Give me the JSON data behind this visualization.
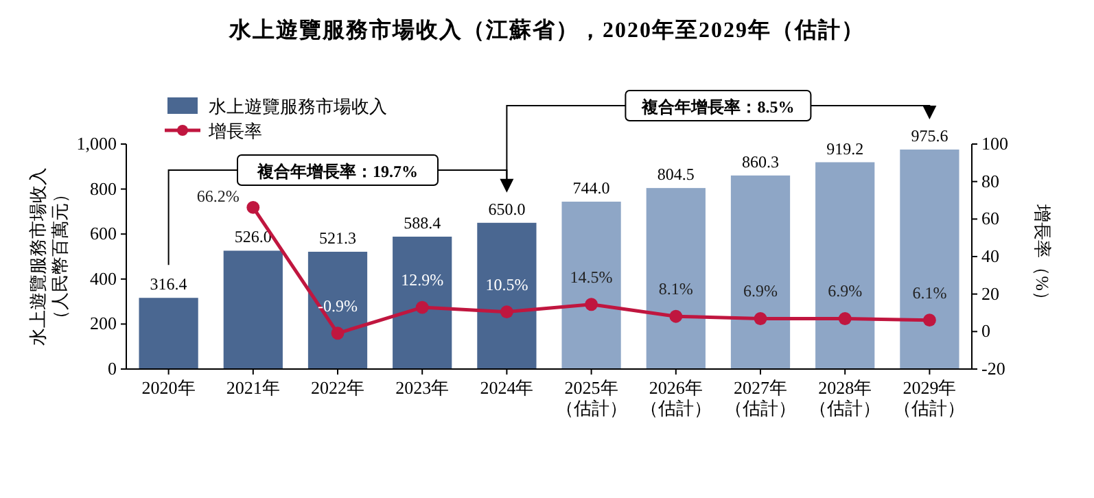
{
  "chart_data": {
    "type": "bar",
    "title": "水上遊覽服務市場收入（江蘇省），2020年至2029年（估計）",
    "categories": [
      "2020年",
      "2021年",
      "2022年",
      "2023年",
      "2024年",
      "2025年（估計）",
      "2026年（估計）",
      "2027年（估計）",
      "2028年（估計）",
      "2029年（估計）"
    ],
    "series": [
      {
        "name": "水上遊覽服務市場收入",
        "color": "#4a6791",
        "colors": [
          "#4a6791",
          "#4a6791",
          "#4a6791",
          "#4a6791",
          "#4a6791",
          "#8ea6c6",
          "#8ea6c6",
          "#8ea6c6",
          "#8ea6c6",
          "#8ea6c6"
        ],
        "values": [
          316.4,
          526.0,
          521.3,
          588.4,
          650.0,
          744.0,
          804.5,
          860.3,
          919.2,
          975.6
        ],
        "value_labels": [
          "316.4",
          "526.0",
          "521.3",
          "588.4",
          "650.0",
          "744.0",
          "804.5",
          "860.3",
          "919.2",
          "975.6"
        ]
      },
      {
        "name": "增長率",
        "type": "line",
        "axis": "y2",
        "color": "#c0163f",
        "values": [
          null,
          66.2,
          -0.9,
          12.9,
          10.5,
          14.5,
          8.1,
          6.9,
          6.9,
          6.1
        ],
        "value_labels": [
          null,
          "66.2%",
          "-0.9%",
          "12.9%",
          "10.5%",
          "14.5%",
          "8.1%",
          "6.9%",
          "6.9%",
          "6.1%"
        ]
      }
    ],
    "ylabel": "水上遊覽服務市場收入（人民幣百萬元）",
    "y2label": "增長率（%）",
    "ylim": [
      0,
      1000
    ],
    "yticks": [
      0,
      200,
      400,
      600,
      800,
      {
        "value": 1000,
        "label": "1,000"
      }
    ],
    "y2lim": [
      -20,
      100
    ],
    "y2ticks": [
      -20,
      0,
      20,
      40,
      60,
      80,
      100
    ],
    "marker": "circle",
    "legend": "top left",
    "grid": false,
    "annotations": [
      "複合年增長率：19.7%",
      "複合年增長率：8.5%"
    ]
  }
}
